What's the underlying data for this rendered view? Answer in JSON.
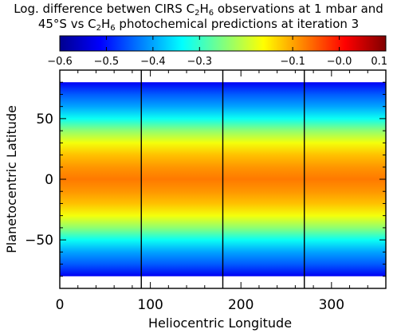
{
  "chart_data": {
    "type": "heatmap",
    "title_line1": {
      "before": "Log. difference betwen CIRS C",
      "sub1": "2",
      "mid": "H",
      "sub2": "6",
      "after": " observations at 1 mbar and"
    },
    "title_line2": {
      "before": "45°S vs C",
      "sub1": "2",
      "mid": "H",
      "sub2": "6",
      "after": " photochemical predictions at iteration 3"
    },
    "xlabel": "Heliocentric Longitude",
    "ylabel": "Planetocentric Latitude",
    "xlim": [
      0,
      360
    ],
    "ylim": [
      -90,
      90
    ],
    "x_ticks": [
      0,
      100,
      200,
      300
    ],
    "y_ticks": [
      -50,
      0,
      50
    ],
    "x_tick_labels": [
      "0",
      "100",
      "200",
      "300"
    ],
    "y_tick_labels": [
      "−50",
      "0",
      "50"
    ],
    "data_latitude_range": [
      -80,
      80
    ],
    "colorbar": {
      "range": [
        -0.6,
        0.1
      ],
      "ticks": [
        -0.6,
        -0.5,
        -0.4,
        -0.3,
        -0.1,
        -0.0,
        0.1
      ],
      "tick_labels": [
        "−0.6",
        "−0.5",
        "−0.4",
        "−0.3",
        "−0.1",
        "−0.0",
        "0.1"
      ],
      "colormap": [
        "#00008f",
        "#0000ff",
        "#0080ff",
        "#00ffff",
        "#80ff80",
        "#ffff00",
        "#ff8000",
        "#ff0000",
        "#800000"
      ]
    },
    "value_profile": {
      "latitude": [
        80,
        70,
        60,
        50,
        40,
        30,
        20,
        10,
        0,
        -10,
        -20,
        -30,
        -40,
        -50,
        -60,
        -70,
        -80
      ],
      "value": [
        -0.52,
        -0.45,
        -0.4,
        -0.33,
        -0.24,
        -0.17,
        -0.12,
        -0.09,
        -0.07,
        -0.09,
        -0.12,
        -0.17,
        -0.24,
        -0.33,
        -0.4,
        -0.45,
        -0.52
      ]
    },
    "vertical_lines_longitude": [
      90,
      180,
      270
    ]
  }
}
